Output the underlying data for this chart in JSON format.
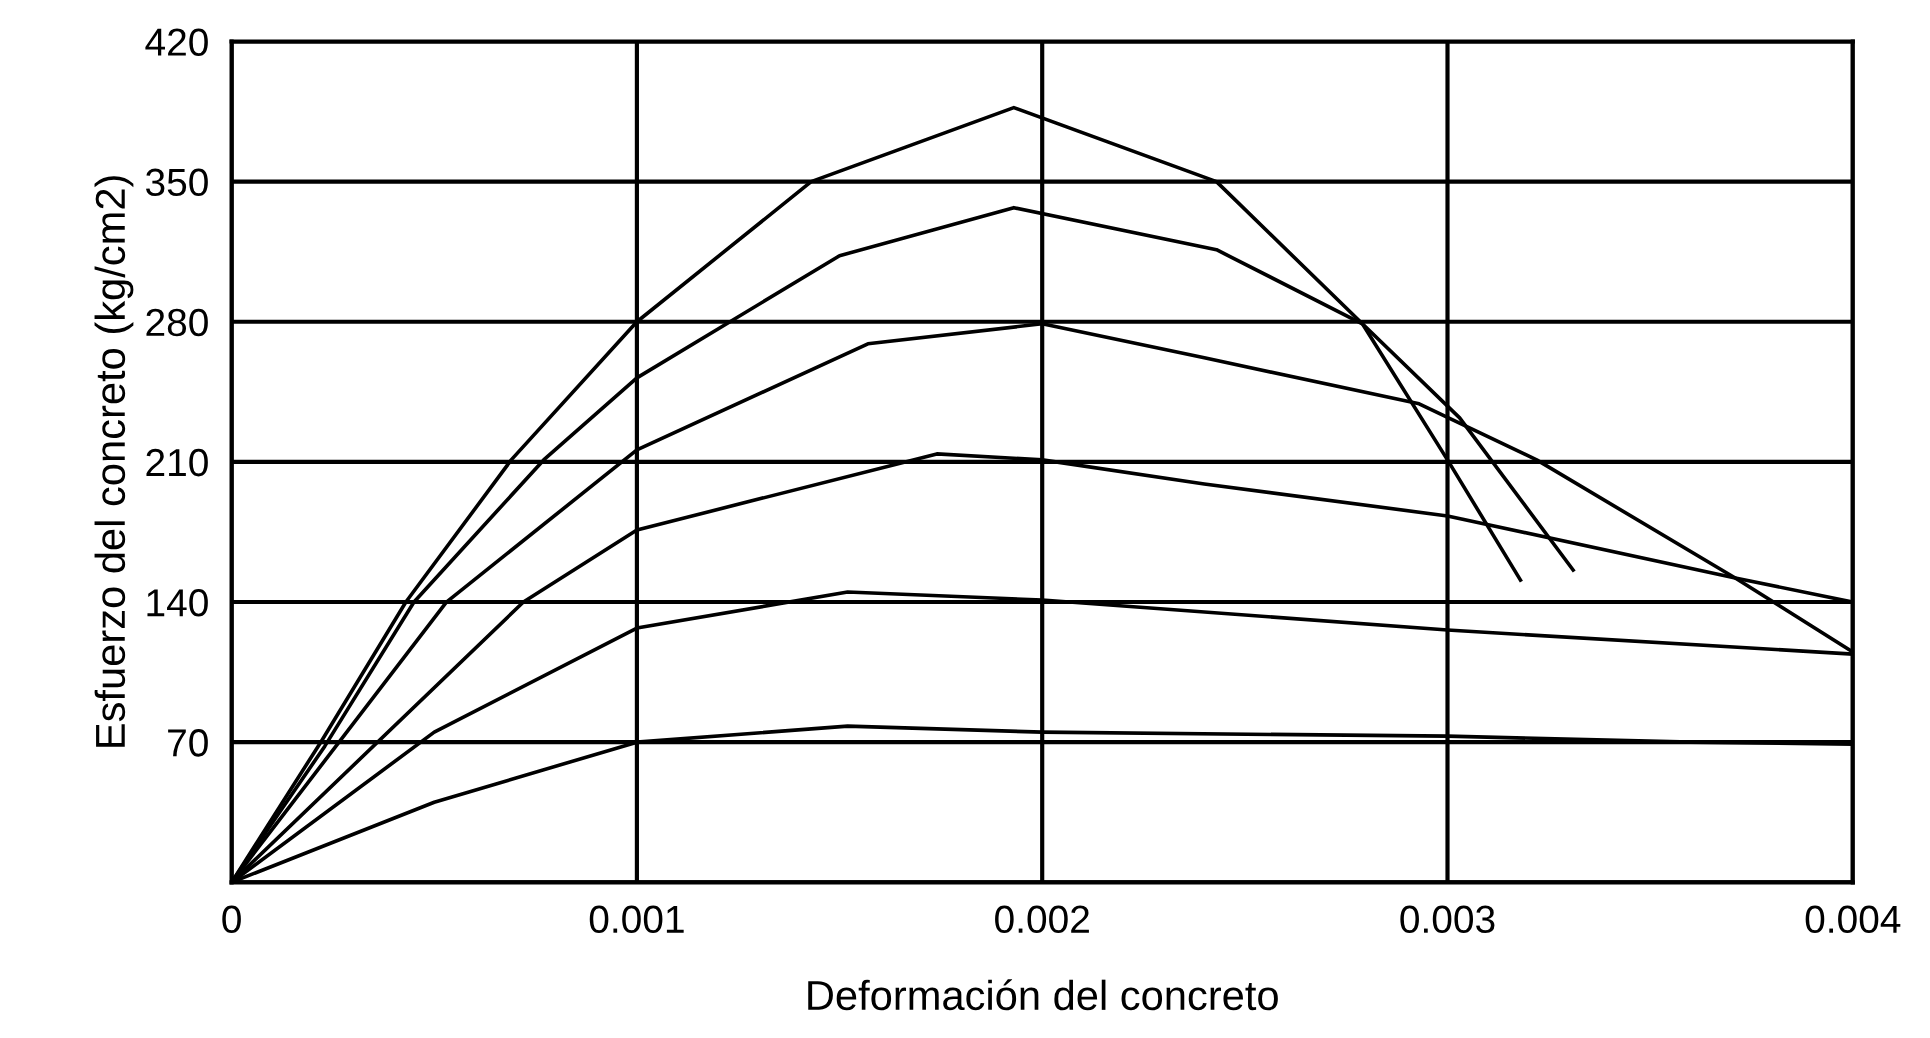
{
  "chart_data": {
    "type": "line",
    "xlabel": "Deformación del concreto",
    "ylabel": "Esfuerzo del concreto (kg/cm2)",
    "xlim": [
      0,
      0.004
    ],
    "ylim": [
      0,
      420
    ],
    "xticks": [
      0,
      0.001,
      0.002,
      0.003,
      0.004
    ],
    "yticks": [
      {
        "value": 0,
        "label": null
      },
      70,
      140,
      210,
      280,
      350,
      420
    ],
    "grid": true,
    "marker": "none",
    "line_style": "solid",
    "series": [
      {
        "color": "#000000",
        "x": [
          0,
          0.00022,
          0.00043,
          0.00069,
          0.001,
          0.00143,
          0.00193,
          0.00243,
          0.00279,
          0.003,
          0.00318
        ],
        "values": [
          0,
          70,
          140,
          211,
          280,
          350,
          387,
          350,
          279,
          211,
          151
        ]
      },
      {
        "color": "#000000",
        "x": [
          0,
          0.00023,
          0.00045,
          0.00077,
          0.001,
          0.0015,
          0.00193,
          0.00243,
          0.00279,
          0.00303,
          0.00331
        ],
        "values": [
          0,
          68,
          140,
          211,
          252,
          313,
          337,
          316,
          279,
          232,
          156
        ]
      },
      {
        "color": "#000000",
        "x": [
          0,
          0.00053,
          0.001,
          0.00157,
          0.002,
          0.0024,
          0.00293,
          0.00322,
          0.00371,
          0.004
        ],
        "values": [
          0,
          140,
          216,
          269,
          279,
          262,
          239,
          211,
          152,
          115
        ]
      },
      {
        "color": "#000000",
        "x": [
          0,
          0.00072,
          0.001,
          0.00174,
          0.002,
          0.0024,
          0.003,
          0.00371,
          0.004
        ],
        "values": [
          0,
          140,
          176,
          214,
          211,
          199,
          183,
          152,
          140
        ]
      },
      {
        "color": "#000000",
        "x": [
          0,
          0.0005,
          0.001,
          0.00152,
          0.002,
          0.003,
          0.004
        ],
        "values": [
          0,
          75,
          127,
          145,
          141,
          126,
          114
        ]
      },
      {
        "color": "#000000",
        "x": [
          0,
          0.0005,
          0.001,
          0.00152,
          0.002,
          0.003,
          0.0036,
          0.004
        ],
        "values": [
          0,
          40,
          70,
          78,
          75,
          73,
          70,
          69
        ]
      }
    ]
  }
}
